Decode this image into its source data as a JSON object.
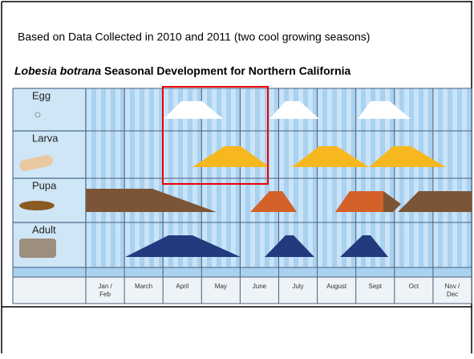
{
  "note": "Based on Data Collected in 2010 and 2011 (two cool growing seasons)",
  "title": {
    "species": "Lobesia botrana",
    "rest": "Seasonal Development for Northern California"
  },
  "stages": [
    "Egg",
    "Larva",
    "Pupa",
    "Adult"
  ],
  "months": [
    "Jan / Feb",
    "March",
    "April",
    "May",
    "June",
    "July",
    "August",
    "Sept",
    "Oct",
    "Nov / Dec"
  ]
}
